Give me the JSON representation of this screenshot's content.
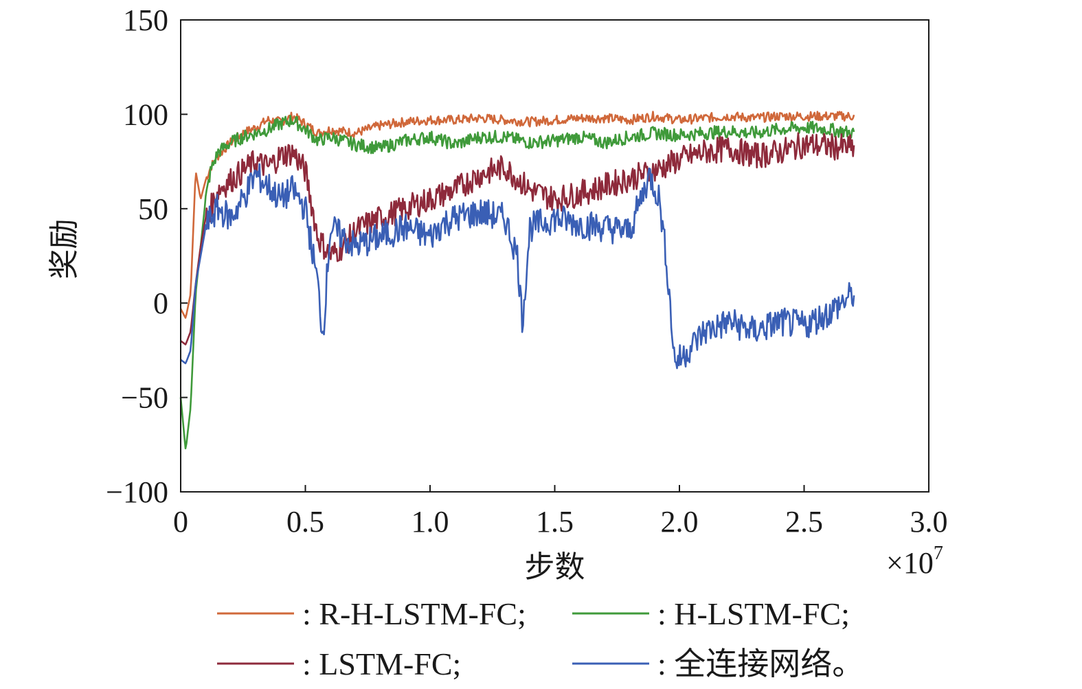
{
  "chart_data": {
    "type": "line",
    "title": "",
    "xlabel": "步数",
    "ylabel": "奖励",
    "x_multiplier_base": "×10",
    "x_multiplier_exp": "7",
    "xlim": [
      0,
      3.0
    ],
    "ylim": [
      -100,
      150
    ],
    "x_ticks": [
      0,
      0.5,
      1.0,
      1.5,
      2.0,
      2.5,
      3.0
    ],
    "x_tick_labels": [
      "0",
      "0.5",
      "1.0",
      "1.5",
      "2.0",
      "2.5",
      "3.0"
    ],
    "y_ticks": [
      -100,
      -50,
      0,
      50,
      100,
      150
    ],
    "y_tick_labels": [
      "−100",
      "−50",
      "0",
      "50",
      "100",
      "150"
    ],
    "grid": false,
    "legend_position": "bottom",
    "series": [
      {
        "name": ": R-H-LSTM-FC;",
        "color": "#d0683a",
        "x": [
          0,
          0.02,
          0.04,
          0.06,
          0.08,
          0.1,
          0.12,
          0.15,
          0.2,
          0.25,
          0.3,
          0.35,
          0.4,
          0.45,
          0.5,
          0.55,
          0.6,
          0.7,
          0.8,
          0.9,
          1.0,
          1.1,
          1.2,
          1.3,
          1.4,
          1.5,
          1.6,
          1.7,
          1.8,
          1.9,
          2.0,
          2.1,
          2.2,
          2.3,
          2.4,
          2.5,
          2.6,
          2.7
        ],
        "y": [
          -3,
          -8,
          5,
          70,
          55,
          65,
          72,
          78,
          85,
          90,
          93,
          97,
          96,
          99,
          95,
          90,
          92,
          90,
          94,
          96,
          97,
          97,
          98,
          97,
          96,
          97,
          98,
          98,
          97,
          99,
          97,
          98,
          99,
          98,
          99,
          99,
          99,
          99
        ]
      },
      {
        "name": ": H-LSTM-FC;",
        "color": "#3f9a3a",
        "x": [
          0,
          0.02,
          0.04,
          0.06,
          0.08,
          0.1,
          0.12,
          0.15,
          0.2,
          0.25,
          0.3,
          0.35,
          0.4,
          0.45,
          0.5,
          0.55,
          0.6,
          0.7,
          0.8,
          0.9,
          1.0,
          1.1,
          1.2,
          1.3,
          1.4,
          1.5,
          1.6,
          1.7,
          1.8,
          1.9,
          2.0,
          2.1,
          2.2,
          2.3,
          2.4,
          2.5,
          2.6,
          2.7
        ],
        "y": [
          -50,
          -78,
          -55,
          5,
          30,
          55,
          70,
          80,
          85,
          88,
          90,
          92,
          95,
          97,
          92,
          86,
          88,
          84,
          82,
          86,
          88,
          84,
          88,
          88,
          85,
          86,
          88,
          85,
          88,
          90,
          89,
          90,
          91,
          90,
          92,
          93,
          92,
          90
        ]
      },
      {
        "name": ": LSTM-FC;",
        "color": "#8e2a3b",
        "x": [
          0,
          0.02,
          0.04,
          0.06,
          0.08,
          0.1,
          0.12,
          0.15,
          0.2,
          0.25,
          0.3,
          0.35,
          0.4,
          0.45,
          0.5,
          0.55,
          0.6,
          0.65,
          0.7,
          0.75,
          0.8,
          0.9,
          1.0,
          1.1,
          1.2,
          1.3,
          1.4,
          1.5,
          1.6,
          1.7,
          1.8,
          1.9,
          2.0,
          2.1,
          2.2,
          2.3,
          2.4,
          2.5,
          2.6,
          2.7
        ],
        "y": [
          -20,
          -22,
          -15,
          10,
          30,
          45,
          50,
          60,
          65,
          70,
          75,
          72,
          78,
          80,
          70,
          35,
          25,
          30,
          38,
          42,
          45,
          50,
          55,
          60,
          68,
          72,
          60,
          55,
          58,
          62,
          66,
          70,
          76,
          80,
          82,
          78,
          80,
          84,
          83,
          82
        ]
      },
      {
        "name": ": 全连接网络。",
        "color": "#3a5fb5",
        "x": [
          0,
          0.02,
          0.04,
          0.06,
          0.08,
          0.1,
          0.12,
          0.15,
          0.2,
          0.25,
          0.3,
          0.35,
          0.4,
          0.45,
          0.5,
          0.55,
          0.57,
          0.6,
          0.7,
          0.8,
          0.9,
          1.0,
          1.05,
          1.1,
          1.2,
          1.3,
          1.35,
          1.37,
          1.4,
          1.5,
          1.6,
          1.7,
          1.8,
          1.88,
          1.92,
          1.95,
          1.98,
          2.0,
          2.1,
          2.2,
          2.3,
          2.4,
          2.5,
          2.6,
          2.7
        ],
        "y": [
          -30,
          -32,
          -25,
          10,
          25,
          40,
          45,
          50,
          45,
          55,
          68,
          62,
          55,
          60,
          50,
          10,
          -18,
          40,
          30,
          35,
          40,
          35,
          42,
          45,
          48,
          45,
          25,
          -10,
          40,
          45,
          42,
          40,
          38,
          68,
          55,
          20,
          -30,
          -30,
          -15,
          -10,
          -15,
          -10,
          -12,
          -5,
          5
        ]
      }
    ]
  }
}
